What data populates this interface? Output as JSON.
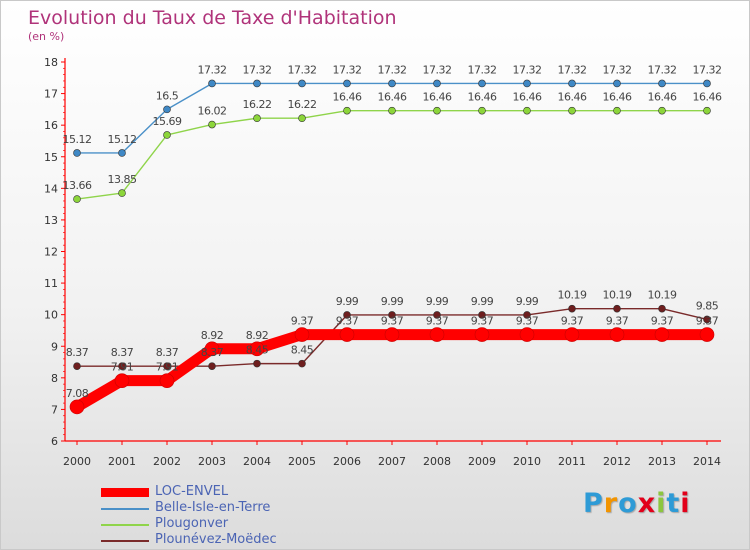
{
  "title": "Evolution du Taux de Taxe d'Habitation",
  "subtitle": "(en %)",
  "logo": {
    "letters": [
      "P",
      "r",
      "o",
      "x",
      "i",
      "t",
      "i"
    ],
    "colors": [
      "#2e9bd6",
      "#f29400",
      "#2e9bd6",
      "#e2001a",
      "#8cc63f",
      "#2e9bd6",
      "#e2001a"
    ]
  },
  "chart_data": {
    "type": "line",
    "x": [
      "2000",
      "2001",
      "2002",
      "2003",
      "2004",
      "2005",
      "2006",
      "2007",
      "2008",
      "2009",
      "2010",
      "2011",
      "2012",
      "2013",
      "2014"
    ],
    "ylim": [
      6,
      18
    ],
    "yticks": [
      "6",
      "7",
      "8",
      "9",
      "10",
      "11",
      "12",
      "13",
      "14",
      "15",
      "16",
      "17",
      "18"
    ],
    "grid": false,
    "legend_position": "bottom-left",
    "series": [
      {
        "name": "LOC-ENVEL",
        "color": "#ff0000",
        "marker_color": "#ff0000",
        "thick": true,
        "values": [
          7.08,
          7.91,
          7.91,
          8.92,
          8.92,
          9.37,
          9.37,
          9.37,
          9.37,
          9.37,
          9.37,
          9.37,
          9.37,
          9.37,
          9.37
        ],
        "labels": [
          "7.08",
          "7.91",
          "7.91",
          "8.92",
          "8.92",
          "9.37",
          "9.37",
          "9.37",
          "9.37",
          "9.37",
          "9.37",
          "9.37",
          "9.37",
          "9.37",
          "9.37"
        ]
      },
      {
        "name": "Belle-Isle-en-Terre",
        "color": "#4a90c8",
        "marker_color": "#3f88c5",
        "values": [
          15.12,
          15.12,
          16.5,
          17.32,
          17.32,
          17.32,
          17.32,
          17.32,
          17.32,
          17.32,
          17.32,
          17.32,
          17.32,
          17.32,
          17.32
        ],
        "labels": [
          "15.12",
          "15.12",
          "16.5",
          "17.32",
          "17.32",
          "17.32",
          "17.32",
          "17.32",
          "17.32",
          "17.32",
          "17.32",
          "17.32",
          "17.32",
          "17.32",
          "17.32"
        ]
      },
      {
        "name": "Plougonver",
        "color": "#8fd44a",
        "marker_color": "#8cd53a",
        "values": [
          13.66,
          13.85,
          15.69,
          16.02,
          16.22,
          16.22,
          16.46,
          16.46,
          16.46,
          16.46,
          16.46,
          16.46,
          16.46,
          16.46,
          16.46
        ],
        "labels": [
          "13.66",
          "13.85",
          "15.69",
          "16.02",
          "16.22",
          "16.22",
          "16.46",
          "16.46",
          "16.46",
          "16.46",
          "16.46",
          "16.46",
          "16.46",
          "16.46",
          "16.46"
        ]
      },
      {
        "name": "Plounévez-Moëdec",
        "color": "#7a2a2a",
        "marker_color": "#6e1e1e",
        "values": [
          8.37,
          8.37,
          8.37,
          8.37,
          8.45,
          8.45,
          9.99,
          9.99,
          9.99,
          9.99,
          9.99,
          10.19,
          10.19,
          10.19,
          9.85
        ],
        "labels": [
          "8.37",
          "8.37",
          "8.37",
          "8.37",
          "8.45",
          "8.45",
          "9.99",
          "9.99",
          "9.99",
          "9.99",
          "9.99",
          "10.19",
          "10.19",
          "10.19",
          "9.85"
        ]
      }
    ]
  }
}
